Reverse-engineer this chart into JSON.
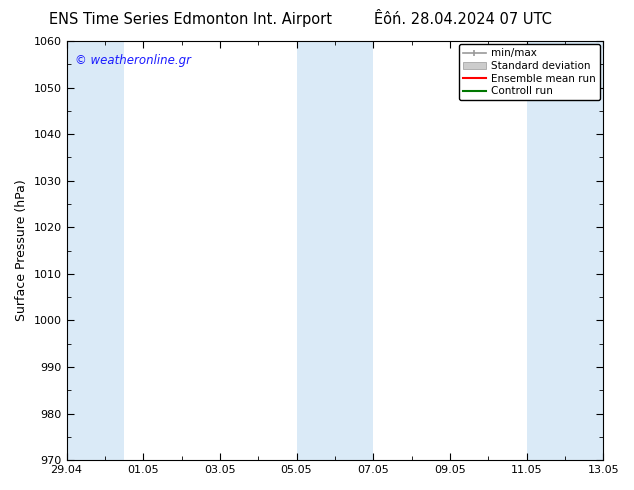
{
  "title_left": "ENS Time Series Edmonton Int. Airport",
  "title_right": "Êôń. 28.04.2024 07 UTC",
  "ylabel": "Surface Pressure (hPa)",
  "ylim": [
    970,
    1060
  ],
  "yticks": [
    970,
    980,
    990,
    1000,
    1010,
    1020,
    1030,
    1040,
    1050,
    1060
  ],
  "xtick_labels": [
    "29.04",
    "01.05",
    "03.05",
    "05.05",
    "07.05",
    "09.05",
    "11.05",
    "13.05"
  ],
  "watermark": "© weatheronline.gr",
  "bg_color": "#ffffff",
  "plot_bg_color": "#ffffff",
  "shaded_color": "#daeaf7",
  "figsize": [
    6.34,
    4.9
  ],
  "dpi": 100,
  "legend_labels": [
    "min/max",
    "Standard deviation",
    "Ensemble mean run",
    "Controll run"
  ],
  "legend_colors": [
    "#aaaaaa",
    "#cccccc",
    "#ff0000",
    "#008000"
  ]
}
